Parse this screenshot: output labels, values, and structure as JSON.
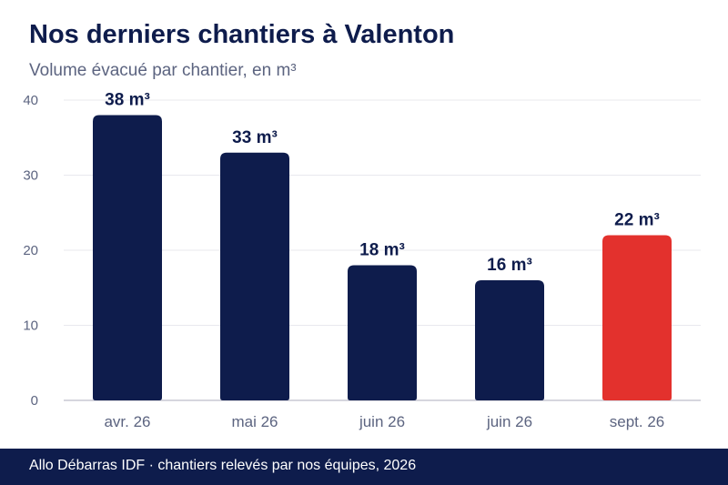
{
  "header": {
    "title": "Nos derniers chantiers à Valenton",
    "subtitle": "Volume évacué par chantier, en m³"
  },
  "footer": {
    "text": "Allo Débarras IDF · chantiers relevés par nos équipes, 2026"
  },
  "colors": {
    "primary_bar": "#0e1c4c",
    "highlight_bar": "#e3312d",
    "grid": "#e8e8ee",
    "axis": "#c8c8d4"
  },
  "chart_data": {
    "type": "bar",
    "categories": [
      "avr. 26",
      "mai 26",
      "juin 26",
      "juin 26",
      "sept. 26"
    ],
    "values": [
      38,
      33,
      18,
      16,
      22
    ],
    "data_labels": [
      "38 m³",
      "33 m³",
      "18 m³",
      "16 m³",
      "22 m³"
    ],
    "highlight_index": 4,
    "title": "Nos derniers chantiers à Valenton",
    "subtitle": "Volume évacué par chantier, en m³",
    "ylim": [
      0,
      40
    ],
    "yticks": [
      0,
      10,
      20,
      30,
      40
    ],
    "grid": true
  }
}
